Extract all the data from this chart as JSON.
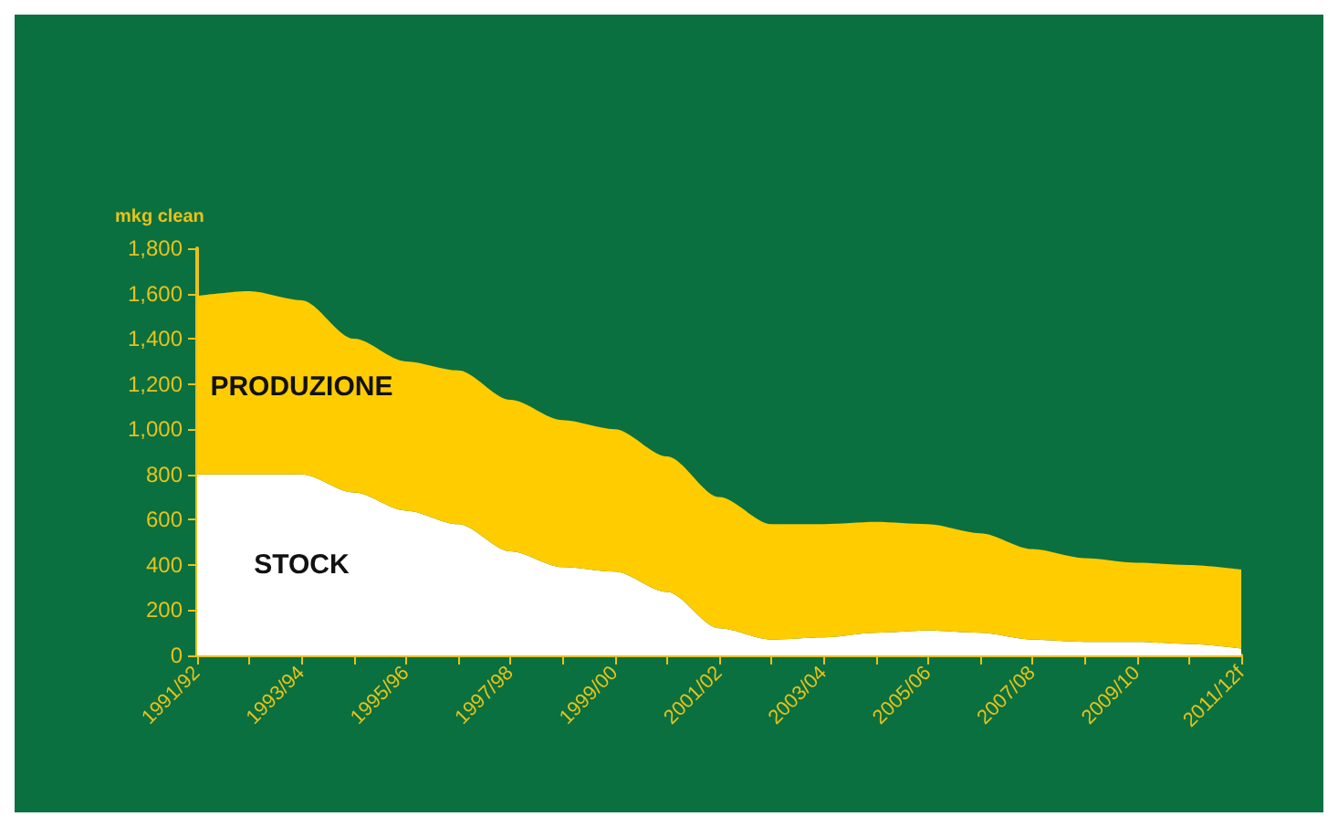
{
  "chart_data": {
    "type": "area",
    "stacked": true,
    "ylabel": "mkg clean",
    "categories": [
      "1991/92",
      null,
      "1993/94",
      null,
      "1995/96",
      null,
      "1997/98",
      null,
      "1999/00",
      null,
      "2001/02",
      null,
      "2003/04",
      null,
      "2005/06",
      null,
      "2007/08",
      null,
      "2009/10",
      null,
      "2011/12f"
    ],
    "series": [
      {
        "name": "STOCK",
        "color": "#ffffff",
        "values": [
          800,
          800,
          800,
          720,
          640,
          580,
          460,
          390,
          370,
          280,
          120,
          70,
          80,
          100,
          110,
          100,
          70,
          60,
          60,
          50,
          30
        ]
      },
      {
        "name": "PRODUZIONE",
        "color": "#ffcc00",
        "values": [
          790,
          810,
          770,
          680,
          660,
          680,
          670,
          650,
          630,
          600,
          580,
          510,
          500,
          490,
          470,
          440,
          400,
          370,
          350,
          350,
          350
        ]
      }
    ],
    "ylim": [
      0,
      1800
    ],
    "yticks": [
      0,
      200,
      400,
      600,
      800,
      {
        "value": 1000,
        "label": "1,000"
      },
      {
        "value": 1200,
        "label": "1,200"
      },
      {
        "value": 1400,
        "label": "1,400"
      },
      {
        "value": 1600,
        "label": "1,600"
      },
      {
        "value": 1800,
        "label": "1,800"
      }
    ],
    "grid": false,
    "legend": false
  }
}
